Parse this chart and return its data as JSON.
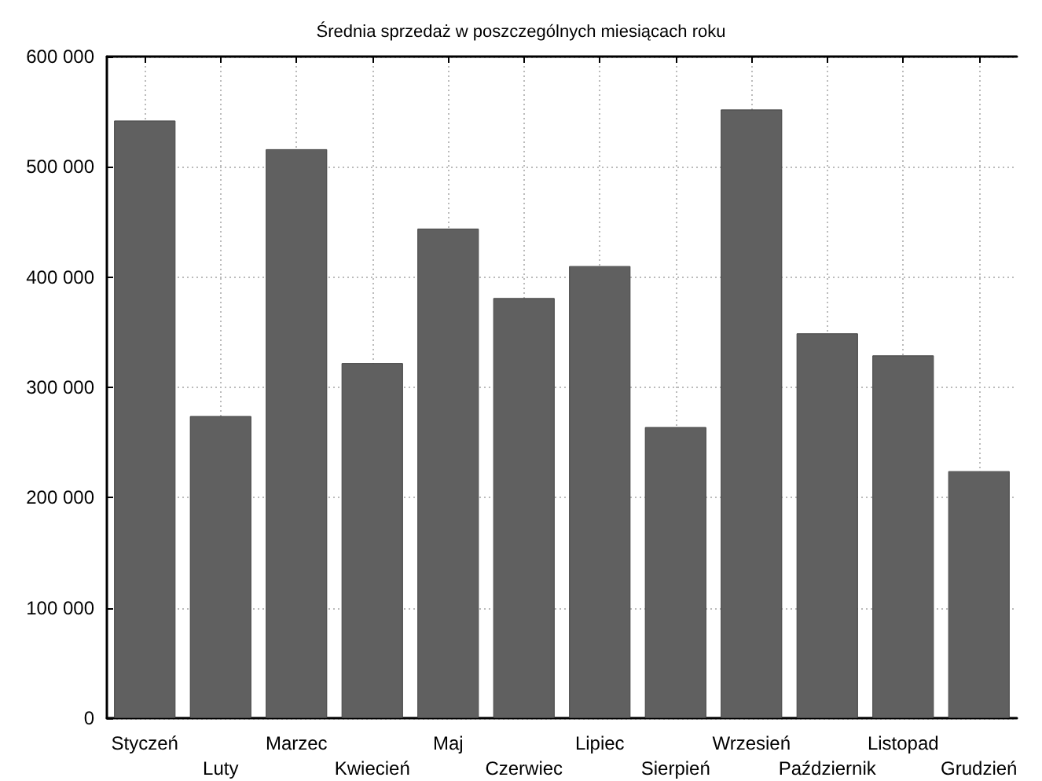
{
  "chart_data": {
    "type": "bar",
    "title": "Średnia sprzedaż w poszczególnych miesiącach roku",
    "categories": [
      "Styczeń",
      "Luty",
      "Marzec",
      "Kwiecień",
      "Maj",
      "Czerwiec",
      "Lipiec",
      "Sierpień",
      "Wrzesień",
      "Październik",
      "Listopad",
      "Grudzień"
    ],
    "values": [
      542000,
      274000,
      516000,
      322000,
      444000,
      381000,
      410000,
      264000,
      552000,
      349000,
      329000,
      224000
    ],
    "color": "#606060",
    "ylim": [
      0,
      600000
    ],
    "yticks": [
      {
        "value": 0,
        "label": "0"
      },
      {
        "value": 100000,
        "label": "100 000"
      },
      {
        "value": 200000,
        "label": "200 000"
      },
      {
        "value": 300000,
        "label": "300 000"
      },
      {
        "value": 400000,
        "label": "400 000"
      },
      {
        "value": 500000,
        "label": "500 000"
      },
      {
        "value": 600000,
        "label": "600 000"
      }
    ],
    "grid": true
  }
}
